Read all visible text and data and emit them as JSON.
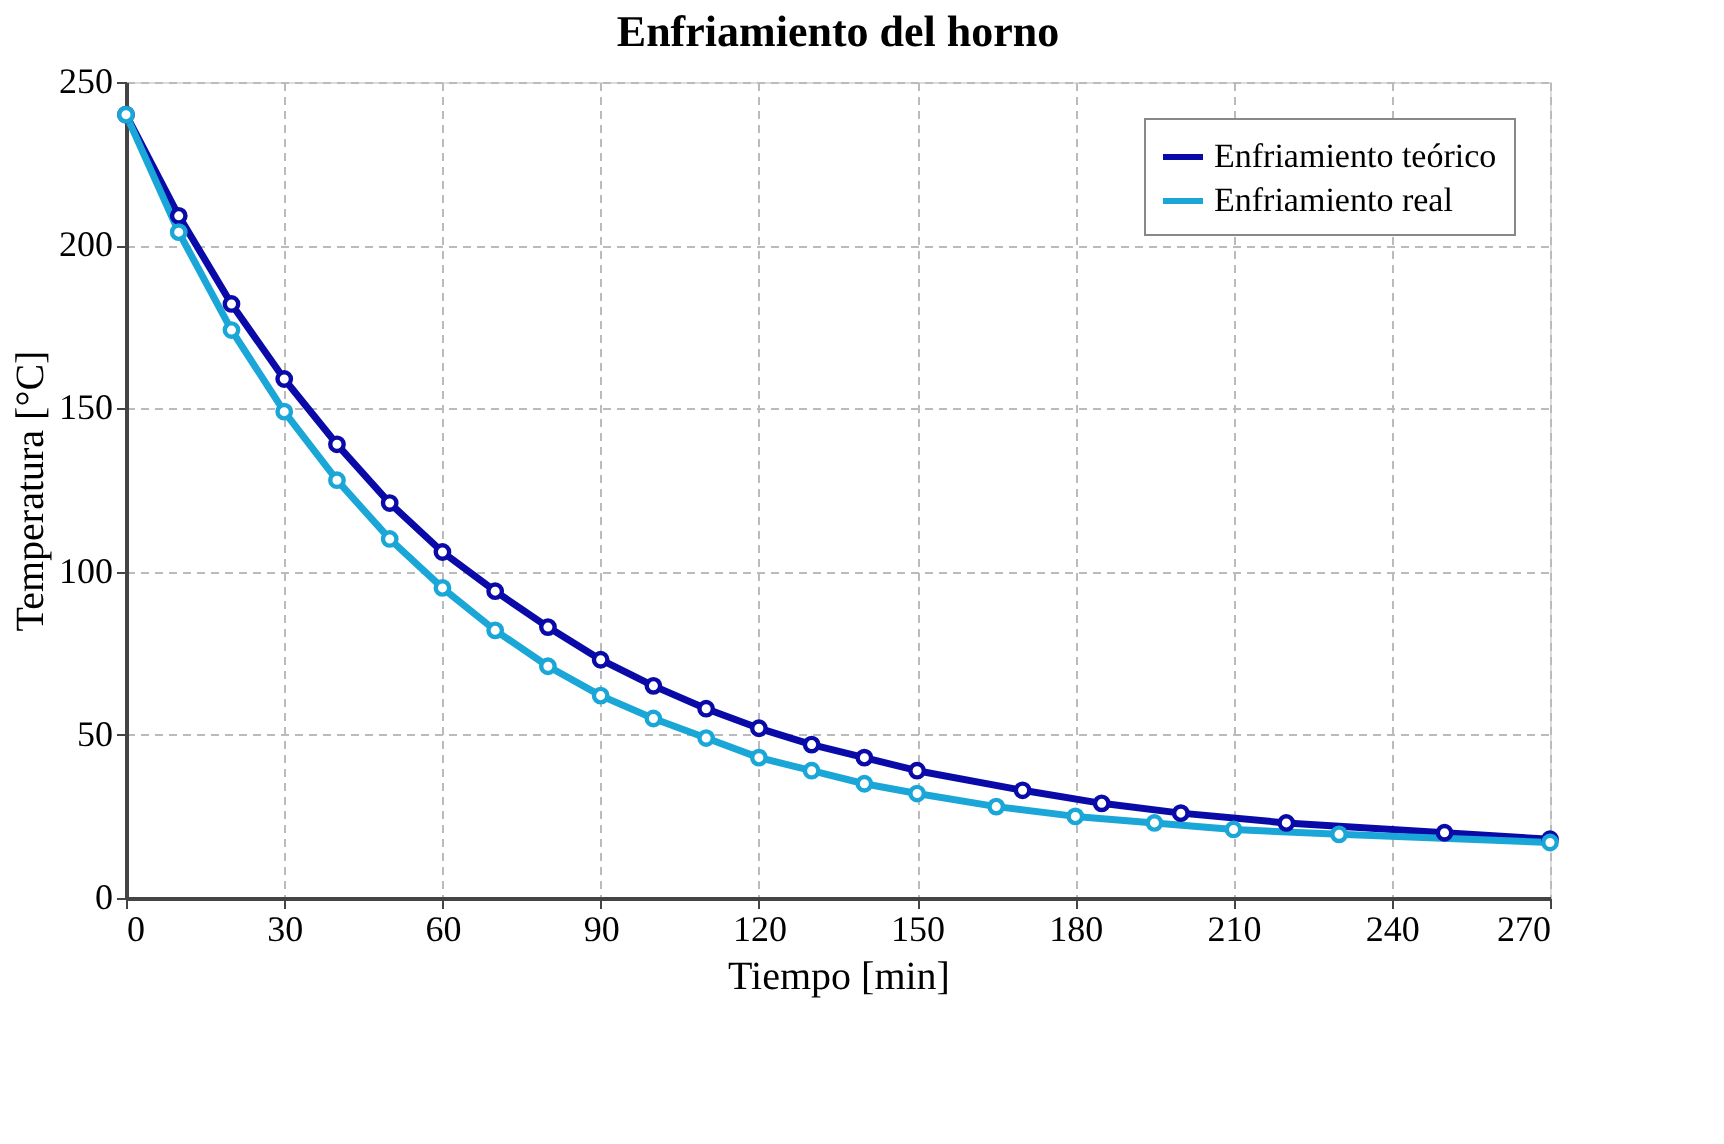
{
  "chart_data": {
    "type": "line",
    "title": "Enfriamiento del horno",
    "xlabel": "Tiempo [min]",
    "ylabel": "Temperatura [°C]",
    "xlim": [
      0,
      270
    ],
    "xticks": [
      0,
      30,
      60,
      90,
      120,
      150,
      180,
      210,
      240,
      270
    ],
    "ylim": [
      0,
      250
    ],
    "yticks": [
      0,
      50,
      100,
      150,
      200,
      250
    ],
    "grid": true,
    "legend": "top right",
    "marker": "circle",
    "line_style": "solid",
    "series": [
      {
        "name": "Enfriamiento teórico",
        "color": "#0a0aa8",
        "x": [
          0,
          10,
          20,
          30,
          40,
          50,
          60,
          70,
          80,
          90,
          100,
          110,
          120,
          130,
          140,
          150,
          170,
          185,
          200,
          220,
          250,
          270
        ],
        "values": [
          240,
          209,
          182,
          159,
          139,
          121,
          106,
          94,
          83,
          73,
          65,
          58,
          52,
          47,
          43,
          39,
          33,
          29,
          26,
          23,
          20,
          18
        ]
      },
      {
        "name": "Enfriamiento real",
        "color": "#1aa7d8",
        "x": [
          0,
          10,
          20,
          30,
          40,
          50,
          60,
          70,
          80,
          90,
          100,
          110,
          120,
          130,
          140,
          150,
          165,
          180,
          195,
          210,
          230,
          270
        ],
        "values": [
          240,
          204,
          174,
          149,
          128,
          110,
          95,
          82,
          71,
          62,
          55,
          49,
          43,
          39,
          35,
          32,
          28,
          25,
          23,
          21,
          19.5,
          17
        ]
      }
    ]
  }
}
